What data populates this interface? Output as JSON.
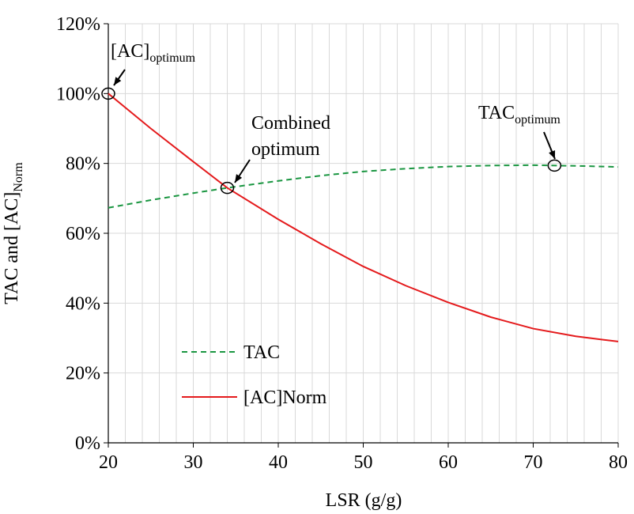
{
  "chart_data": {
    "type": "line",
    "ylabel": "TAC and  [AC]",
    "ylabel_sub": "Norm",
    "xlabel": "LSR (g/g)",
    "x": [
      20,
      25,
      30,
      34,
      40,
      45,
      50,
      55,
      60,
      65,
      70,
      75,
      80
    ],
    "series": [
      {
        "name": "TAC",
        "color": "#1a9641",
        "dash": true,
        "values": [
          67.3,
          69.5,
          71.5,
          73,
          75,
          76.5,
          77.7,
          78.5,
          79.1,
          79.4,
          79.5,
          79.3,
          79.0
        ]
      },
      {
        "name": "[AC]Norm",
        "color": "#e41a1c",
        "dash": false,
        "values": [
          100,
          90,
          80.5,
          73,
          64,
          57,
          50.5,
          45,
          40.2,
          36,
          32.7,
          30.5,
          29
        ]
      }
    ],
    "xlim": [
      20,
      80
    ],
    "xticks": [
      20,
      30,
      40,
      50,
      60,
      70,
      80
    ],
    "xgrid": [
      22,
      24,
      26,
      28,
      32,
      34,
      36,
      38,
      42,
      44,
      46,
      48,
      52,
      54,
      56,
      58,
      62,
      64,
      66,
      68,
      72,
      74,
      76,
      78
    ],
    "ylim": [
      0,
      120
    ],
    "yticks": [
      {
        "value": 0,
        "label": "0%"
      },
      {
        "value": 20,
        "label": "20%"
      },
      {
        "value": 40,
        "label": "40%"
      },
      {
        "value": 60,
        "label": "60%"
      },
      {
        "value": 80,
        "label": "80%"
      },
      {
        "value": 100,
        "label": "100%"
      },
      {
        "value": 120,
        "label": "120%"
      }
    ],
    "grid": true,
    "legend": "lower left",
    "annotations": [
      {
        "text": "[AC]",
        "sub": "optimum",
        "x": 20,
        "y": 100
      },
      {
        "text": "Combined",
        "text2": "optimum",
        "x": 34,
        "y": 73
      },
      {
        "text": "TAC",
        "sub": "optimum",
        "x": 72.5,
        "y": 79.4
      }
    ]
  }
}
